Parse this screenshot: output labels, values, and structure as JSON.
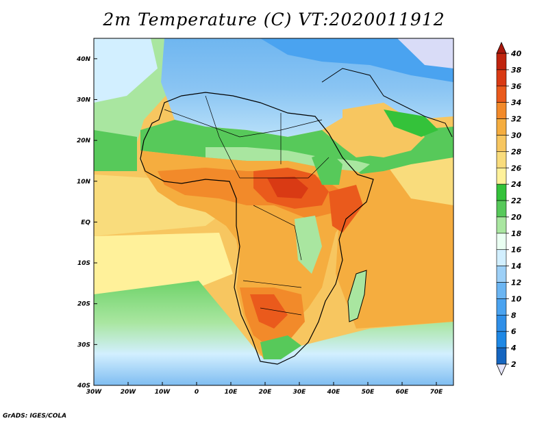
{
  "title": "2m Temperature (C) VT:2020011912",
  "credit": "GrADS: IGES/COLA",
  "map": {
    "lat_labels": [
      "40N",
      "30N",
      "20N",
      "10N",
      "EQ",
      "10S",
      "20S",
      "30S",
      "40S"
    ],
    "lon_labels": [
      "30W",
      "20W",
      "10W",
      "0",
      "10E",
      "20E",
      "30E",
      "40E",
      "50E",
      "60E",
      "70E"
    ],
    "lat_range": [
      -40,
      45
    ],
    "lon_range": [
      -30,
      75
    ]
  },
  "colorbar": {
    "labels": [
      "2",
      "4",
      "6",
      "8",
      "10",
      "12",
      "14",
      "16",
      "18",
      "20",
      "22",
      "24",
      "26",
      "28",
      "30",
      "32",
      "34",
      "36",
      "38",
      "40"
    ],
    "colors": [
      "#1a237e",
      "#1565c0",
      "#1e88e5",
      "#2f8fe8",
      "#4aa3f0",
      "#6bb5f2",
      "#9dd0f7",
      "#d2efff",
      "#eafff2",
      "#a9e6a0",
      "#57c95a",
      "#34c23a",
      "#fff19a",
      "#f9dc7c",
      "#f7c660",
      "#f5ad3f",
      "#f28a2a",
      "#ea5a1c",
      "#d93a14",
      "#c0240e",
      "#a8170c"
    ]
  }
}
